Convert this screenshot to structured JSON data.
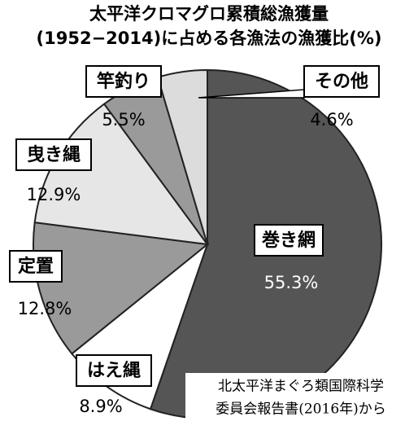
{
  "chart_data": {
    "type": "pie",
    "title": [
      "太平洋クロマグロ累積総漁獲量",
      "(1952−2014)に占める各漁法の漁獲比(%)"
    ],
    "categories": [
      "巻き網",
      "はえ縄",
      "定置",
      "曳き縄",
      "竿釣り",
      "その他"
    ],
    "values": [
      55.3,
      8.9,
      12.8,
      12.9,
      5.5,
      4.6
    ],
    "value_labels": [
      "55.3%",
      "8.9%",
      "12.8%",
      "12.9%",
      "5.5%",
      "4.6%"
    ],
    "colors": [
      "#555555",
      "#ffffff",
      "#9a9a9a",
      "#e6e6e6",
      "#9a9a9a",
      "#dcdcdc"
    ],
    "source": [
      "北太平洋まぐろ類国際科学",
      "委員会報告書(2016年)から"
    ]
  }
}
